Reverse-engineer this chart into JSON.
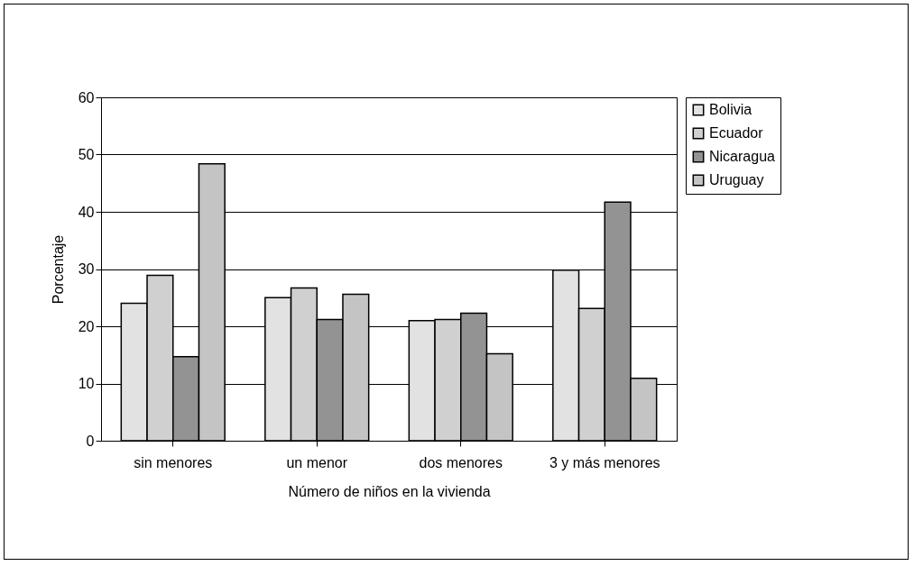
{
  "chart_data": {
    "type": "bar",
    "xlabel": "Número de niños en la vivienda",
    "ylabel": "Porcentaje",
    "categories": [
      "sin menores",
      "un menor",
      "dos menores",
      "3 y más menores"
    ],
    "series": [
      {
        "name": "Bolivia",
        "color": "#e2e2e2",
        "values": [
          24.0,
          25.0,
          21.0,
          29.8
        ]
      },
      {
        "name": "Ecuador",
        "color": "#d0d0d0",
        "values": [
          28.9,
          26.7,
          21.2,
          23.1
        ]
      },
      {
        "name": "Nicaragua",
        "color": "#939393",
        "values": [
          14.7,
          21.2,
          22.3,
          41.7
        ]
      },
      {
        "name": "Uruguay",
        "color": "#c4c4c4",
        "values": [
          48.4,
          25.6,
          15.2,
          10.9
        ]
      }
    ],
    "ylim": [
      0,
      60
    ],
    "yticks": [
      0,
      10,
      20,
      30,
      40,
      50,
      60
    ],
    "grid": "y",
    "legend": "right"
  }
}
